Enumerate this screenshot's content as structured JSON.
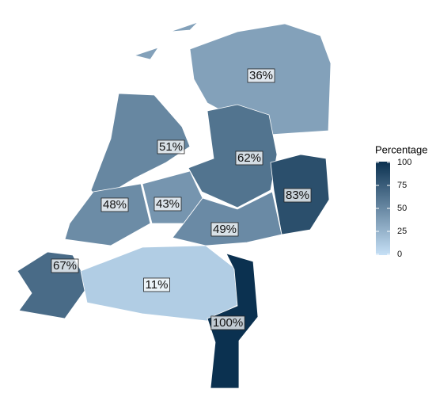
{
  "chart_data": {
    "type": "choropleth",
    "values": [
      36,
      51,
      62,
      83,
      48,
      43,
      49,
      67,
      11,
      100
    ],
    "value_labels": [
      "36%",
      "51%",
      "62%",
      "83%",
      "48%",
      "43%",
      "49%",
      "67%",
      "11%",
      "100%"
    ],
    "colorbar": {
      "title": "Percentage",
      "lim": [
        0,
        100
      ],
      "ticks": [
        0,
        25,
        50,
        75,
        100
      ],
      "colors": [
        "#c6e0f6",
        "#0b3150"
      ]
    }
  }
}
